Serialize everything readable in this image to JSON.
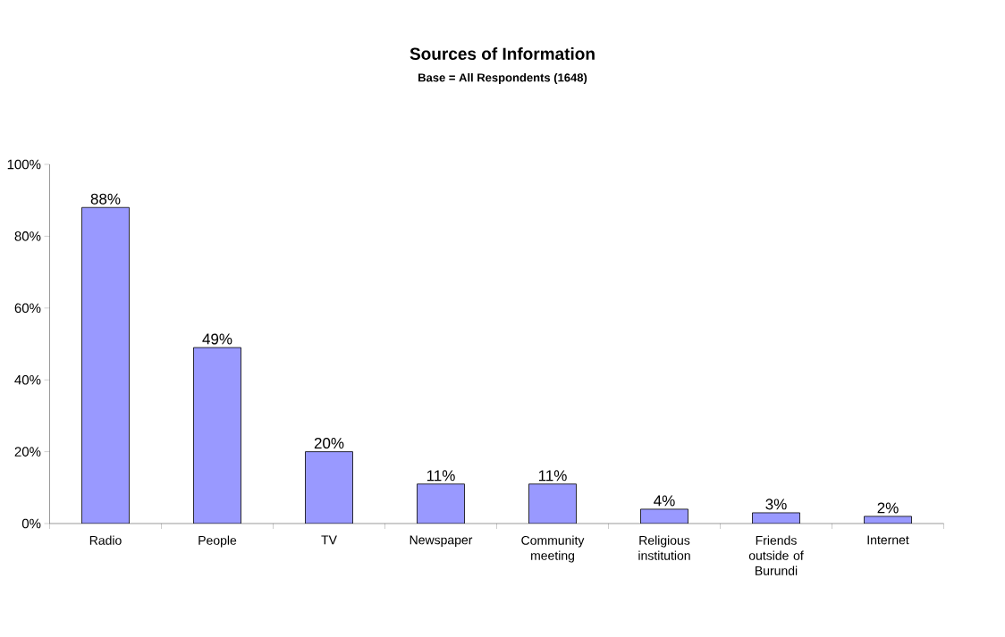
{
  "chart_data": {
    "type": "bar",
    "title": "Sources of Information",
    "subtitle": "Base = All Respondents (1648)",
    "categories": [
      "Radio",
      "People",
      "TV",
      "Newspaper",
      "Community meeting",
      "Religious institution",
      "Friends outside of Burundi",
      "Internet"
    ],
    "values": [
      88,
      49,
      20,
      11,
      11,
      4,
      3,
      2
    ],
    "value_labels": [
      "88%",
      "49%",
      "20%",
      "11%",
      "11%",
      "4%",
      "3%",
      "2%"
    ],
    "color": "#9999ff",
    "ylim": [
      0,
      100
    ],
    "yticks": [
      {
        "value": 0,
        "label": "0%"
      },
      {
        "value": 20,
        "label": "20%"
      },
      {
        "value": 40,
        "label": "40%"
      },
      {
        "value": 60,
        "label": "60%"
      },
      {
        "value": 80,
        "label": "80%"
      },
      {
        "value": 100,
        "label": "100%"
      }
    ],
    "grid": false
  }
}
